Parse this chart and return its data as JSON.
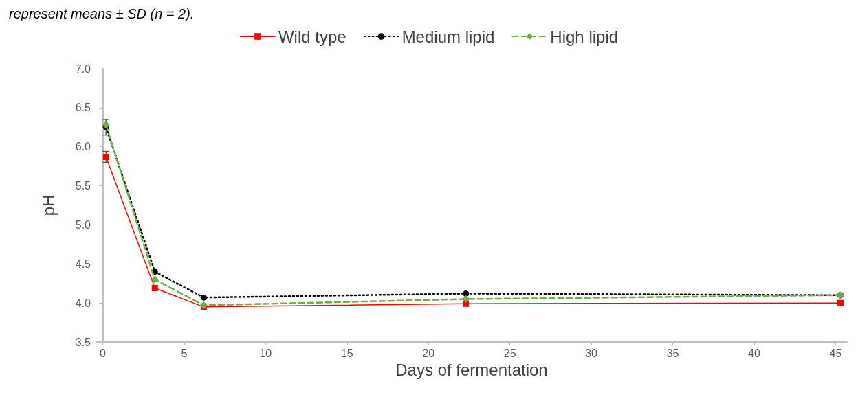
{
  "chart_data": {
    "type": "line",
    "xlabel": "Days of fermentation",
    "ylabel": "pH",
    "annotations": [
      "represent means ± SD (n = 2)."
    ],
    "xlim": [
      -0.4,
      45.7
    ],
    "xticks": [
      0,
      5,
      10,
      15,
      20,
      25,
      30,
      35,
      40,
      45
    ],
    "ylim": [
      3.5,
      7.0
    ],
    "yticks": [
      3.5,
      {
        "value": 4,
        "label": "4.0"
      },
      4.5,
      {
        "value": 5,
        "label": "5.0"
      },
      5.5,
      {
        "value": 6,
        "label": "6.0"
      },
      6.5,
      {
        "value": 7,
        "label": "7.0"
      }
    ],
    "grid": false,
    "legend": "top",
    "series": [
      {
        "name": "Wild type",
        "color": "#ff0000",
        "marker": "square",
        "line_style": "solid",
        "x": [
          0.2,
          3.2,
          6.2,
          22.3,
          45.3
        ],
        "values": [
          5.87,
          4.19,
          3.95,
          3.99,
          4.0
        ],
        "errors": [
          0.07,
          null,
          null,
          null,
          null
        ]
      },
      {
        "name": "Medium lipid",
        "color": "#000000",
        "marker": "circle",
        "line_style": "dotted",
        "x": [
          0.2,
          3.2,
          6.2,
          22.3,
          45.3
        ],
        "values": [
          6.25,
          4.4,
          4.07,
          4.12,
          4.1
        ],
        "errors": [
          0.1,
          null,
          null,
          null,
          null
        ]
      },
      {
        "name": "High lipid",
        "color": "#70ad47",
        "marker": "diamond",
        "line_style": "dashed",
        "x": [
          0.2,
          3.2,
          6.2,
          22.3,
          45.3
        ],
        "values": [
          6.28,
          4.3,
          3.97,
          4.05,
          4.1
        ],
        "errors": [
          null,
          null,
          null,
          null,
          null
        ]
      }
    ]
  }
}
